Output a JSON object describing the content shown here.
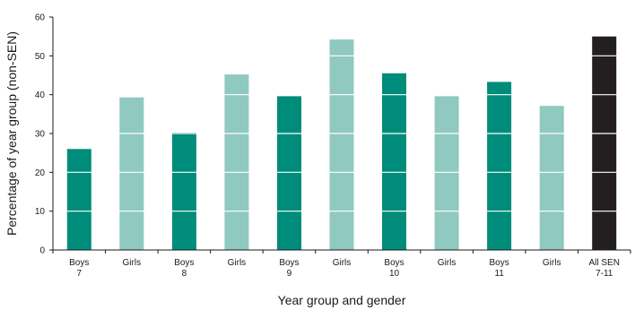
{
  "chart_data": {
    "type": "bar",
    "title": "",
    "xlabel": "Year group and gender",
    "ylabel": "Percentage of year group (non-SEN)",
    "ylim": [
      0,
      60
    ],
    "yticks": [
      0,
      10,
      20,
      30,
      40,
      50,
      60
    ],
    "grid": "white lines through bars",
    "legend": "none",
    "categories": [
      {
        "line1": "Boys",
        "line2": "7"
      },
      {
        "line1": "Girls",
        "line2": ""
      },
      {
        "line1": "Boys",
        "line2": "8"
      },
      {
        "line1": "Girls",
        "line2": ""
      },
      {
        "line1": "Boys",
        "line2": "9"
      },
      {
        "line1": "Girls",
        "line2": ""
      },
      {
        "line1": "Boys",
        "line2": "10"
      },
      {
        "line1": "Girls",
        "line2": ""
      },
      {
        "line1": "Boys",
        "line2": "11"
      },
      {
        "line1": "Girls",
        "line2": ""
      },
      {
        "line1": "All SEN",
        "line2": "7-11"
      }
    ],
    "values": [
      26,
      39.3,
      30.2,
      45.2,
      39.6,
      54.2,
      45.5,
      39.6,
      43.3,
      37.1,
      55
    ],
    "bar_colors": [
      "#008c7a",
      "#8fc9c0",
      "#008c7a",
      "#8fc9c0",
      "#008c7a",
      "#8fc9c0",
      "#008c7a",
      "#8fc9c0",
      "#008c7a",
      "#8fc9c0",
      "#231f20"
    ]
  }
}
